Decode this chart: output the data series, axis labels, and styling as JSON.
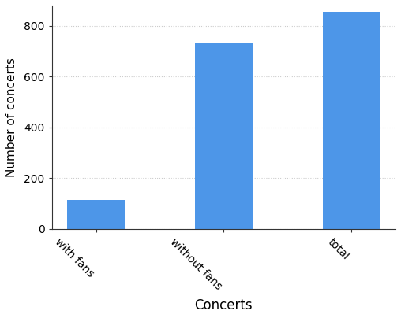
{
  "categories": [
    "with fans",
    "without fans",
    "total"
  ],
  "values": [
    115,
    730,
    855
  ],
  "bar_color": "#4d96e8",
  "xlabel": "Concerts",
  "ylabel": "Number of concerts",
  "ylim": [
    0,
    880
  ],
  "yticks": [
    0,
    200,
    400,
    600,
    800
  ],
  "grid_color": "#cccccc",
  "bar_width": 0.45,
  "tick_rotation": -45,
  "background_color": "#ffffff",
  "xlabel_fontsize": 12,
  "ylabel_fontsize": 11,
  "tick_fontsize": 10
}
